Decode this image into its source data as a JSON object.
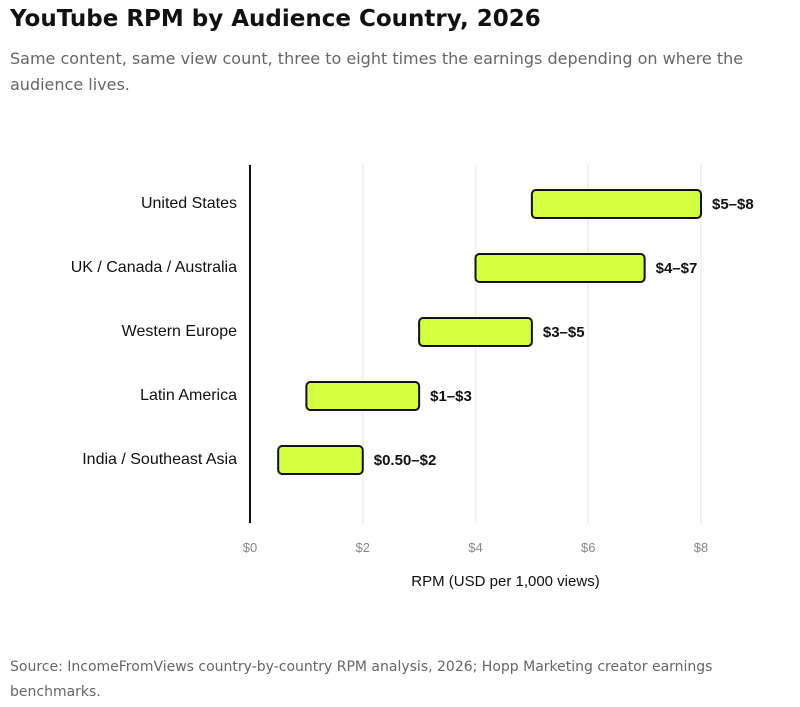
{
  "title": "YouTube RPM by Audience Country, 2026",
  "subtitle": "Same content, same view count, three to eight times the earnings depending on where the audience lives.",
  "source": "Source: IncomeFromViews country-by-country RPM analysis, 2026; Hopp Marketing creator earnings benchmarks.",
  "colors": {
    "bar_fill": "#d4ff3f",
    "bar_stroke": "#111111",
    "grid": "#eeeeee",
    "axis": "#111111"
  },
  "chart_data": {
    "type": "bar",
    "orientation": "horizontal-range",
    "categories": [
      "United States",
      "UK / Canada / Australia",
      "Western Europe",
      "Latin America",
      "India / Southeast Asia"
    ],
    "ranges": [
      [
        5,
        8
      ],
      [
        4,
        7
      ],
      [
        3,
        5
      ],
      [
        1,
        3
      ],
      [
        0.5,
        2
      ]
    ],
    "data_labels": [
      "$5–$8",
      "$4–$7",
      "$3–$5",
      "$1–$3",
      "$0.50–$2"
    ],
    "xlabel": "RPM (USD per 1,000 views)",
    "ylabel": "",
    "xlim": [
      0,
      8
    ],
    "x_ticks": [
      0,
      2,
      4,
      6,
      8
    ],
    "x_tick_labels": [
      "$0",
      "$2",
      "$4",
      "$6",
      "$8"
    ],
    "grid": "vertical"
  }
}
